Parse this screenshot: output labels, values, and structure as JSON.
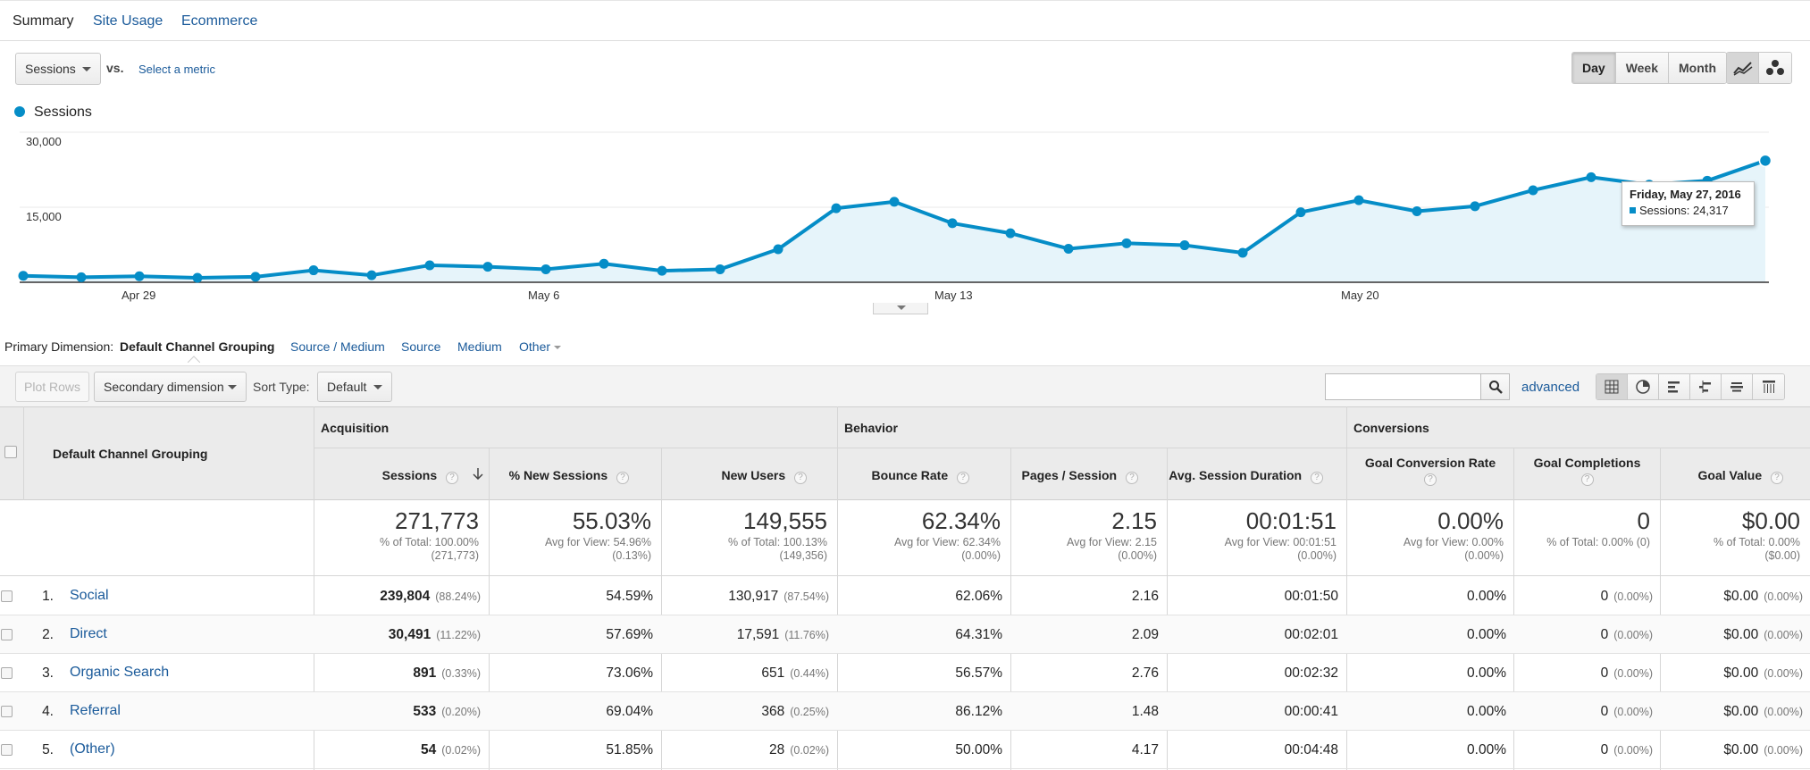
{
  "tabs": [
    "Summary",
    "Site Usage",
    "Ecommerce"
  ],
  "controls": {
    "metric_select": "Sessions",
    "vs_label": "vs.",
    "select_metric_link": "Select a metric",
    "period_buttons": [
      "Day",
      "Week",
      "Month"
    ],
    "active_period": "Day",
    "chart_type_icons": [
      "line-chart-icon",
      "motion-chart-icon"
    ]
  },
  "chart_data": {
    "type": "line",
    "legend": "Sessions",
    "series": [
      {
        "name": "Sessions",
        "values": [
          1300,
          1000,
          1200,
          900,
          1100,
          2400,
          1400,
          3400,
          3100,
          2600,
          3700,
          2300,
          2600,
          6600,
          14800,
          16100,
          11800,
          9800,
          6700,
          7800,
          7400,
          5900,
          14000,
          16400,
          14200,
          15200,
          18400,
          21000,
          19500,
          20300,
          24317
        ]
      }
    ],
    "x_tick_labels": [
      "Apr 29",
      "May 6",
      "May 13",
      "May 20"
    ],
    "x_tick_index": [
      2,
      9,
      16,
      23
    ],
    "y_tick_labels": [
      "30,000",
      "15,000"
    ],
    "y_tick_values": [
      30000,
      15000
    ],
    "ylim": [
      0,
      30000
    ],
    "grid": true,
    "tooltip": {
      "date": "Friday, May 27, 2016",
      "text": "Sessions: 24,317"
    },
    "line_color": "#058dc7",
    "fill_color": "#e6f4fa"
  },
  "primary_dimension": {
    "label": "Primary Dimension:",
    "active": "Default Channel Grouping",
    "options": [
      "Source / Medium",
      "Source",
      "Medium",
      "Other"
    ]
  },
  "toolbar": {
    "plot_rows": "Plot Rows",
    "secondary_dimension": "Secondary dimension",
    "sort_type_label": "Sort Type:",
    "sort_type_value": "Default",
    "advanced": "advanced",
    "view_icons": [
      "table-view-icon",
      "pie-view-icon",
      "performance-view-icon",
      "comparison-view-icon",
      "term-cloud-icon",
      "pivot-view-icon"
    ]
  },
  "table": {
    "dimension_header": "Default Channel Grouping",
    "groups": [
      "Acquisition",
      "Behavior",
      "Conversions"
    ],
    "columns": [
      "Sessions",
      "% New Sessions",
      "New Users",
      "Bounce Rate",
      "Pages / Session",
      "Avg. Session Duration",
      "Goal Conversion Rate",
      "Goal Completions",
      "Goal Value"
    ],
    "totals": [
      {
        "main": "271,773",
        "sub1": "% of Total: 100.00%",
        "sub2": "(271,773)"
      },
      {
        "main": "55.03%",
        "sub1": "Avg for View: 54.96%",
        "sub2": "(0.13%)"
      },
      {
        "main": "149,555",
        "sub1": "% of Total: 100.13%",
        "sub2": "(149,356)"
      },
      {
        "main": "62.34%",
        "sub1": "Avg for View: 62.34%",
        "sub2": "(0.00%)"
      },
      {
        "main": "2.15",
        "sub1": "Avg for View: 2.15",
        "sub2": "(0.00%)"
      },
      {
        "main": "00:01:51",
        "sub1": "Avg for View: 00:01:51",
        "sub2": "(0.00%)"
      },
      {
        "main": "0.00%",
        "sub1": "Avg for View: 0.00%",
        "sub2": "(0.00%)"
      },
      {
        "main": "0",
        "sub1": "% of Total: 0.00% (0)",
        "sub2": ""
      },
      {
        "main": "$0.00",
        "sub1": "% of Total: 0.00%",
        "sub2": "($0.00)"
      }
    ],
    "rows": [
      {
        "num": "1.",
        "name": "Social",
        "sessions": "239,804",
        "sessions_pct": "(88.24%)",
        "new_sessions": "54.59%",
        "new_users": "130,917",
        "new_users_pct": "(87.54%)",
        "bounce": "62.06%",
        "pages": "2.16",
        "duration": "00:01:50",
        "gcr": "0.00%",
        "gc": "0",
        "gc_pct": "(0.00%)",
        "gv": "$0.00",
        "gv_pct": "(0.00%)"
      },
      {
        "num": "2.",
        "name": "Direct",
        "sessions": "30,491",
        "sessions_pct": "(11.22%)",
        "new_sessions": "57.69%",
        "new_users": "17,591",
        "new_users_pct": "(11.76%)",
        "bounce": "64.31%",
        "pages": "2.09",
        "duration": "00:02:01",
        "gcr": "0.00%",
        "gc": "0",
        "gc_pct": "(0.00%)",
        "gv": "$0.00",
        "gv_pct": "(0.00%)"
      },
      {
        "num": "3.",
        "name": "Organic Search",
        "sessions": "891",
        "sessions_pct": "(0.33%)",
        "new_sessions": "73.06%",
        "new_users": "651",
        "new_users_pct": "(0.44%)",
        "bounce": "56.57%",
        "pages": "2.76",
        "duration": "00:02:32",
        "gcr": "0.00%",
        "gc": "0",
        "gc_pct": "(0.00%)",
        "gv": "$0.00",
        "gv_pct": "(0.00%)"
      },
      {
        "num": "4.",
        "name": "Referral",
        "sessions": "533",
        "sessions_pct": "(0.20%)",
        "new_sessions": "69.04%",
        "new_users": "368",
        "new_users_pct": "(0.25%)",
        "bounce": "86.12%",
        "pages": "1.48",
        "duration": "00:00:41",
        "gcr": "0.00%",
        "gc": "0",
        "gc_pct": "(0.00%)",
        "gv": "$0.00",
        "gv_pct": "(0.00%)"
      },
      {
        "num": "5.",
        "name": "(Other)",
        "sessions": "54",
        "sessions_pct": "(0.02%)",
        "new_sessions": "51.85%",
        "new_users": "28",
        "new_users_pct": "(0.02%)",
        "bounce": "50.00%",
        "pages": "4.17",
        "duration": "00:04:48",
        "gcr": "0.00%",
        "gc": "0",
        "gc_pct": "(0.00%)",
        "gv": "$0.00",
        "gv_pct": "(0.00%)"
      }
    ]
  }
}
